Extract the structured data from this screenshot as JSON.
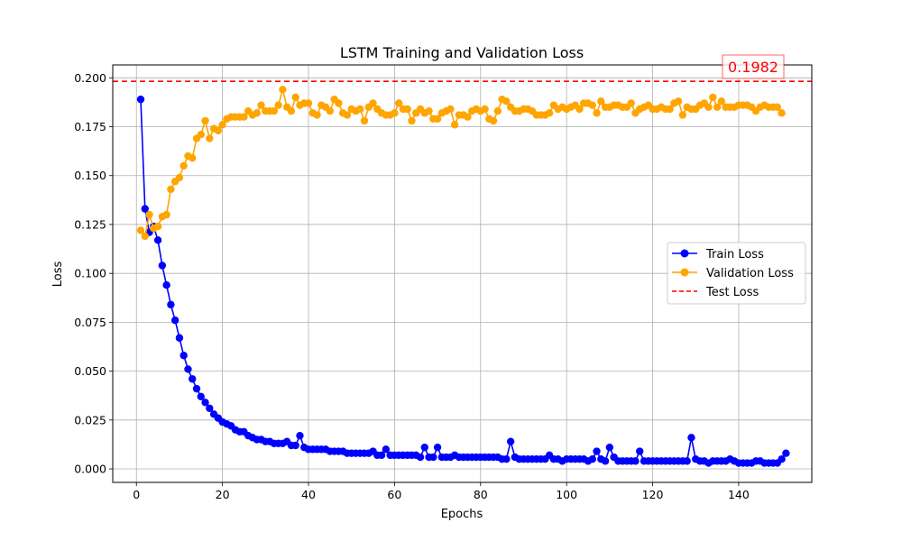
{
  "chart_data": {
    "type": "line",
    "title": "LSTM Training and Validation Loss",
    "xlabel": "Epochs",
    "ylabel": "Loss",
    "xlim": [
      -5.5,
      157
    ],
    "ylim": [
      -0.0069,
      0.2066
    ],
    "xticks": [
      0,
      20,
      40,
      60,
      80,
      100,
      120,
      140
    ],
    "yticks": [
      0.0,
      0.025,
      0.05,
      0.075,
      0.1,
      0.125,
      0.15,
      0.175,
      0.2
    ],
    "ytick_labels": [
      "0.000",
      "0.025",
      "0.050",
      "0.075",
      "0.100",
      "0.125",
      "0.150",
      "0.175",
      "0.200"
    ],
    "grid": true,
    "legend": {
      "position": "center-right",
      "entries": [
        "Train Loss",
        "Validation Loss",
        "Test Loss"
      ]
    },
    "series": [
      {
        "name": "Train Loss",
        "color": "#0000ff",
        "marker": "circle",
        "x_start": 1,
        "values": [
          0.189,
          0.133,
          0.121,
          0.124,
          0.117,
          0.104,
          0.094,
          0.084,
          0.076,
          0.067,
          0.058,
          0.051,
          0.046,
          0.041,
          0.037,
          0.034,
          0.031,
          0.028,
          0.026,
          0.024,
          0.023,
          0.022,
          0.02,
          0.019,
          0.019,
          0.017,
          0.016,
          0.015,
          0.015,
          0.014,
          0.014,
          0.013,
          0.013,
          0.013,
          0.014,
          0.012,
          0.012,
          0.017,
          0.011,
          0.01,
          0.01,
          0.01,
          0.01,
          0.01,
          0.009,
          0.009,
          0.009,
          0.009,
          0.008,
          0.008,
          0.008,
          0.008,
          0.008,
          0.008,
          0.009,
          0.007,
          0.007,
          0.01,
          0.007,
          0.007,
          0.007,
          0.007,
          0.007,
          0.007,
          0.007,
          0.006,
          0.011,
          0.006,
          0.006,
          0.011,
          0.006,
          0.006,
          0.006,
          0.007,
          0.006,
          0.006,
          0.006,
          0.006,
          0.006,
          0.006,
          0.006,
          0.006,
          0.006,
          0.006,
          0.005,
          0.005,
          0.014,
          0.006,
          0.005,
          0.005,
          0.005,
          0.005,
          0.005,
          0.005,
          0.005,
          0.007,
          0.005,
          0.005,
          0.004,
          0.005,
          0.005,
          0.005,
          0.005,
          0.005,
          0.004,
          0.005,
          0.009,
          0.005,
          0.004,
          0.011,
          0.006,
          0.004,
          0.004,
          0.004,
          0.004,
          0.004,
          0.009,
          0.004,
          0.004,
          0.004,
          0.004,
          0.004,
          0.004,
          0.004,
          0.004,
          0.004,
          0.004,
          0.004,
          0.016,
          0.005,
          0.004,
          0.004,
          0.003,
          0.004,
          0.004,
          0.004,
          0.004,
          0.005,
          0.004,
          0.003,
          0.003,
          0.003,
          0.003,
          0.004,
          0.004,
          0.003,
          0.003,
          0.003,
          0.003,
          0.005,
          0.008
        ]
      },
      {
        "name": "Validation Loss",
        "color": "#ffa500",
        "marker": "circle",
        "x_start": 1,
        "values": [
          0.122,
          0.119,
          0.13,
          0.123,
          0.124,
          0.129,
          0.13,
          0.143,
          0.147,
          0.149,
          0.155,
          0.16,
          0.159,
          0.169,
          0.171,
          0.178,
          0.169,
          0.174,
          0.173,
          0.176,
          0.179,
          0.18,
          0.18,
          0.18,
          0.18,
          0.183,
          0.181,
          0.182,
          0.186,
          0.183,
          0.183,
          0.183,
          0.186,
          0.194,
          0.185,
          0.183,
          0.19,
          0.186,
          0.187,
          0.187,
          0.182,
          0.181,
          0.186,
          0.185,
          0.183,
          0.189,
          0.187,
          0.182,
          0.181,
          0.184,
          0.183,
          0.184,
          0.178,
          0.185,
          0.187,
          0.184,
          0.182,
          0.181,
          0.181,
          0.182,
          0.187,
          0.184,
          0.184,
          0.178,
          0.182,
          0.184,
          0.182,
          0.183,
          0.179,
          0.179,
          0.182,
          0.183,
          0.184,
          0.176,
          0.181,
          0.181,
          0.18,
          0.183,
          0.184,
          0.183,
          0.184,
          0.179,
          0.178,
          0.183,
          0.189,
          0.188,
          0.185,
          0.183,
          0.183,
          0.184,
          0.184,
          0.183,
          0.181,
          0.181,
          0.181,
          0.182,
          0.186,
          0.184,
          0.185,
          0.184,
          0.185,
          0.186,
          0.184,
          0.187,
          0.187,
          0.186,
          0.182,
          0.188,
          0.185,
          0.185,
          0.186,
          0.186,
          0.185,
          0.185,
          0.187,
          0.182,
          0.184,
          0.185,
          0.186,
          0.184,
          0.184,
          0.185,
          0.184,
          0.184,
          0.187,
          0.188,
          0.181,
          0.185,
          0.184,
          0.184,
          0.186,
          0.187,
          0.185,
          0.19,
          0.185,
          0.188,
          0.185,
          0.185,
          0.185,
          0.186,
          0.186,
          0.186,
          0.185,
          0.183,
          0.185,
          0.186,
          0.185,
          0.185,
          0.185,
          0.182
        ],
        "note": ""
      },
      {
        "name": "Test Loss",
        "color": "#ff0000",
        "style": "dashed-horizontal",
        "value": 0.1982
      }
    ],
    "annotation": {
      "text": "0.1982",
      "color": "#ff0000"
    }
  }
}
